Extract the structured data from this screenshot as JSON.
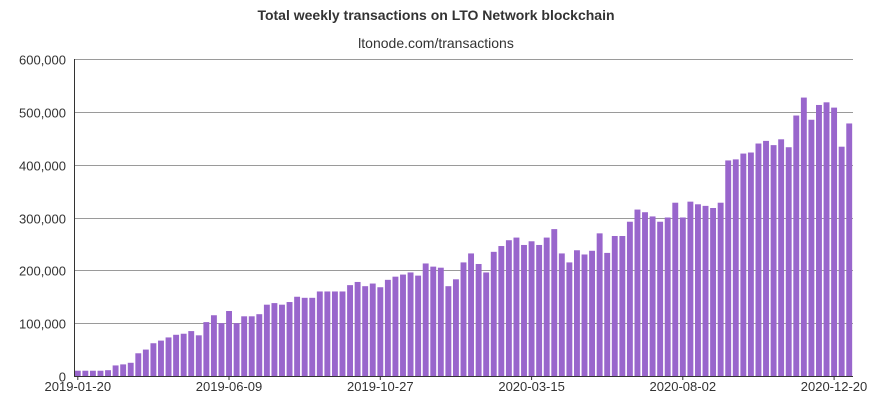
{
  "chart_data": {
    "type": "bar",
    "title": "Total weekly transactions on LTO Network blockchain",
    "subtitle": "ltonode.com/transactions",
    "xlabel": "",
    "ylabel": "",
    "ylim": [
      0,
      600000
    ],
    "yticks": [
      "0",
      "100,000",
      "200,000",
      "300,000",
      "400,000",
      "500,000",
      "600,000"
    ],
    "ytick_values": [
      0,
      100000,
      200000,
      300000,
      400000,
      500000,
      600000
    ],
    "xtick_labels": [
      "2019-01-20",
      "2019-06-09",
      "2019-10-27",
      "2020-03-15",
      "2020-08-02",
      "2020-12-20"
    ],
    "xtick_indices": [
      0,
      20,
      40,
      60,
      80,
      100
    ],
    "grid": true,
    "bar_color": "#9966cc",
    "values": [
      10000,
      10000,
      10000,
      10000,
      11000,
      20000,
      22000,
      25000,
      43000,
      50000,
      62000,
      67000,
      73000,
      78000,
      80000,
      85000,
      77000,
      102000,
      115000,
      100000,
      123000,
      100000,
      113000,
      113000,
      117000,
      135000,
      138000,
      135000,
      140000,
      150000,
      148000,
      148000,
      160000,
      160000,
      160000,
      160000,
      172000,
      178000,
      170000,
      175000,
      168000,
      182000,
      188000,
      192000,
      196000,
      190000,
      213000,
      207000,
      205000,
      170000,
      183000,
      215000,
      232000,
      212000,
      196000,
      235000,
      246000,
      257000,
      262000,
      248000,
      255000,
      248000,
      262000,
      278000,
      232000,
      215000,
      238000,
      230000,
      237000,
      270000,
      233000,
      265000,
      265000,
      292000,
      315000,
      310000,
      302000,
      292000,
      300000,
      328000,
      300000,
      330000,
      325000,
      322000,
      318000,
      328000,
      408000,
      410000,
      421000,
      423000,
      440000,
      445000,
      437000,
      448000,
      433000,
      493000,
      527000,
      485000,
      513000,
      518000,
      508000,
      434000,
      478000
    ]
  }
}
